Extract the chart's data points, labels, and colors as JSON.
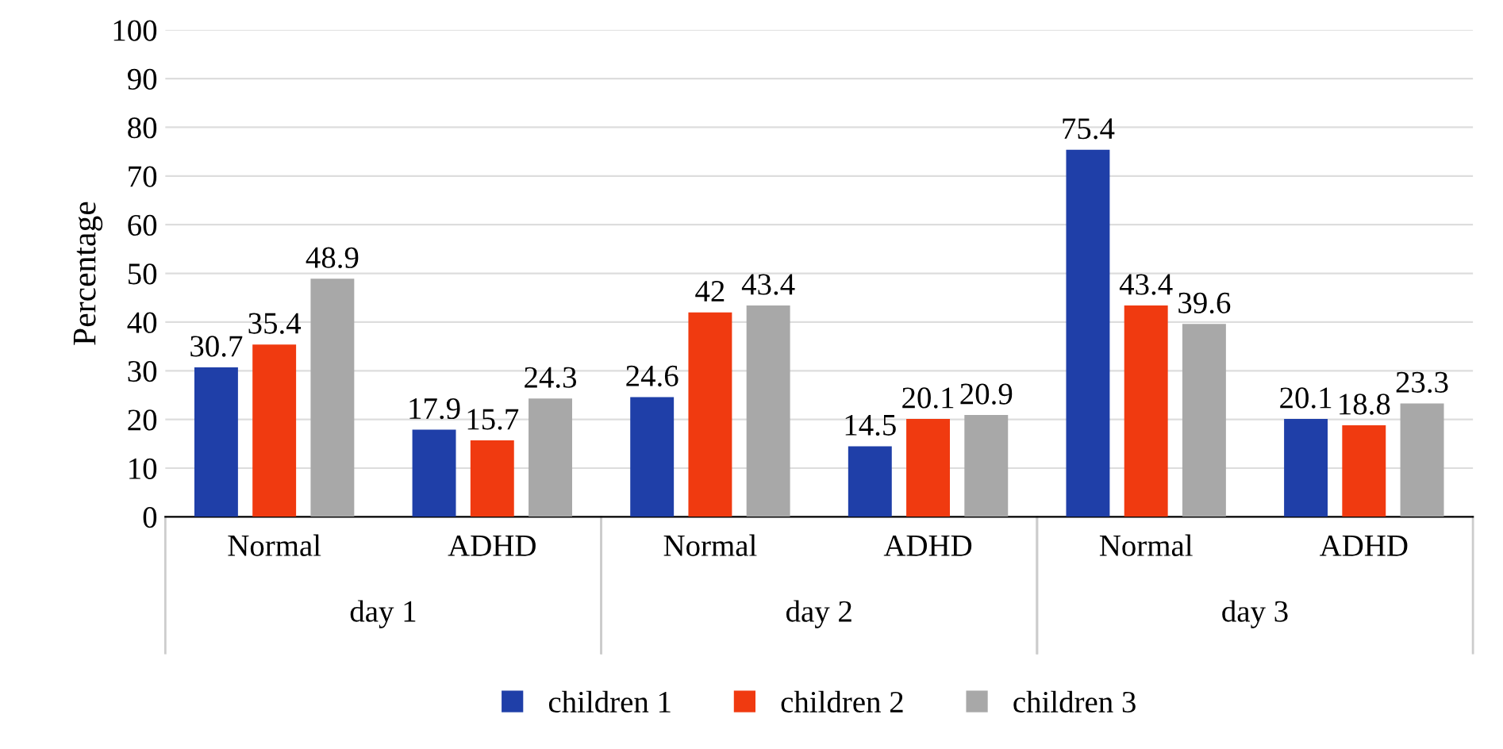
{
  "chart_data": {
    "type": "bar",
    "ylabel": "Percentage",
    "categories": [
      "Normal",
      "ADHD",
      "Normal",
      "ADHD",
      "Normal",
      "ADHD"
    ],
    "annotations": [
      "day 1",
      "day 2",
      "day 3"
    ],
    "series": [
      {
        "name": "children 1",
        "color": "#1f3fa8",
        "values": [
          30.7,
          17.9,
          24.6,
          14.5,
          75.4,
          20.1
        ]
      },
      {
        "name": "children 2",
        "color": "#f03a10",
        "values": [
          35.4,
          15.7,
          42,
          20.1,
          43.4,
          18.8
        ]
      },
      {
        "name": "children 3",
        "color": "#a8a8a8",
        "values": [
          48.9,
          24.3,
          43.4,
          20.9,
          39.6,
          23.3
        ]
      }
    ],
    "ylim": [
      0,
      100
    ],
    "yticks": [
      0,
      10,
      20,
      30,
      40,
      50,
      60,
      70,
      80,
      90,
      100
    ],
    "grid": "y",
    "legend": "bottom",
    "data_labels": true
  }
}
